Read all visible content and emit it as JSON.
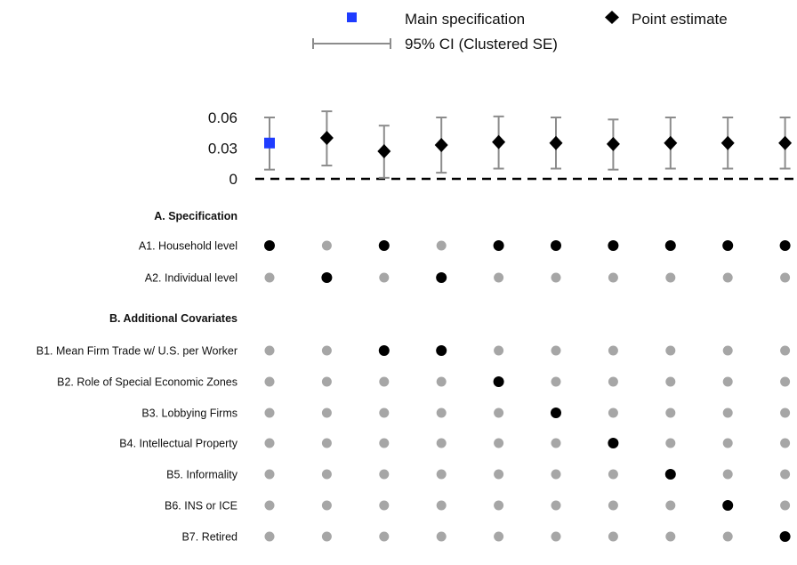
{
  "legend": {
    "main_spec_label": "Main specification",
    "point_estimate_label": "Point estimate",
    "ci_label": "95% CI (Clustered SE)"
  },
  "colors": {
    "main_spec": "#1f3cff",
    "point": "#000000",
    "ci": "#8c8c8c",
    "dot_off": "#a6a6a6",
    "dot_on": "#000000"
  },
  "chart_data": {
    "type": "scatter",
    "ylim": [
      0,
      0.06
    ],
    "y_ticks": [
      0,
      0.03,
      0.06
    ],
    "y_tick_labels": [
      "0",
      "0.03",
      "0.06"
    ],
    "zero_line": "dashed",
    "specifications": [
      {
        "estimate": 0.035,
        "ci_low": 0.009,
        "ci_high": 0.06,
        "main": true
      },
      {
        "estimate": 0.04,
        "ci_low": 0.013,
        "ci_high": 0.066,
        "main": false
      },
      {
        "estimate": 0.027,
        "ci_low": 0.001,
        "ci_high": 0.052,
        "main": false
      },
      {
        "estimate": 0.033,
        "ci_low": 0.006,
        "ci_high": 0.06,
        "main": false
      },
      {
        "estimate": 0.036,
        "ci_low": 0.01,
        "ci_high": 0.061,
        "main": false
      },
      {
        "estimate": 0.035,
        "ci_low": 0.01,
        "ci_high": 0.06,
        "main": false
      },
      {
        "estimate": 0.034,
        "ci_low": 0.009,
        "ci_high": 0.058,
        "main": false
      },
      {
        "estimate": 0.035,
        "ci_low": 0.01,
        "ci_high": 0.06,
        "main": false
      },
      {
        "estimate": 0.035,
        "ci_low": 0.01,
        "ci_high": 0.06,
        "main": false
      },
      {
        "estimate": 0.035,
        "ci_low": 0.01,
        "ci_high": 0.06,
        "main": false
      }
    ],
    "sections": [
      {
        "title": "A. Specification",
        "rows": [
          {
            "label": "A1. Household level",
            "on": [
              1,
              0,
              1,
              0,
              1,
              1,
              1,
              1,
              1,
              1
            ]
          },
          {
            "label": "A2. Individual level",
            "on": [
              0,
              1,
              0,
              1,
              0,
              0,
              0,
              0,
              0,
              0
            ]
          }
        ]
      },
      {
        "title": "B. Additional Covariates",
        "rows": [
          {
            "label": "B1. Mean Firm Trade w/ U.S. per Worker",
            "on": [
              0,
              0,
              1,
              1,
              0,
              0,
              0,
              0,
              0,
              0
            ]
          },
          {
            "label": "B2. Role of Special Economic Zones",
            "on": [
              0,
              0,
              0,
              0,
              1,
              0,
              0,
              0,
              0,
              0
            ]
          },
          {
            "label": "B3. Lobbying Firms",
            "on": [
              0,
              0,
              0,
              0,
              0,
              1,
              0,
              0,
              0,
              0
            ]
          },
          {
            "label": "B4. Intellectual Property",
            "on": [
              0,
              0,
              0,
              0,
              0,
              0,
              1,
              0,
              0,
              0
            ]
          },
          {
            "label": "B5. Informality",
            "on": [
              0,
              0,
              0,
              0,
              0,
              0,
              0,
              1,
              0,
              0
            ]
          },
          {
            "label": "B6. INS or ICE",
            "on": [
              0,
              0,
              0,
              0,
              0,
              0,
              0,
              0,
              1,
              0
            ]
          },
          {
            "label": "B7. Retired",
            "on": [
              0,
              0,
              0,
              0,
              0,
              0,
              0,
              0,
              0,
              1
            ]
          }
        ]
      }
    ]
  }
}
